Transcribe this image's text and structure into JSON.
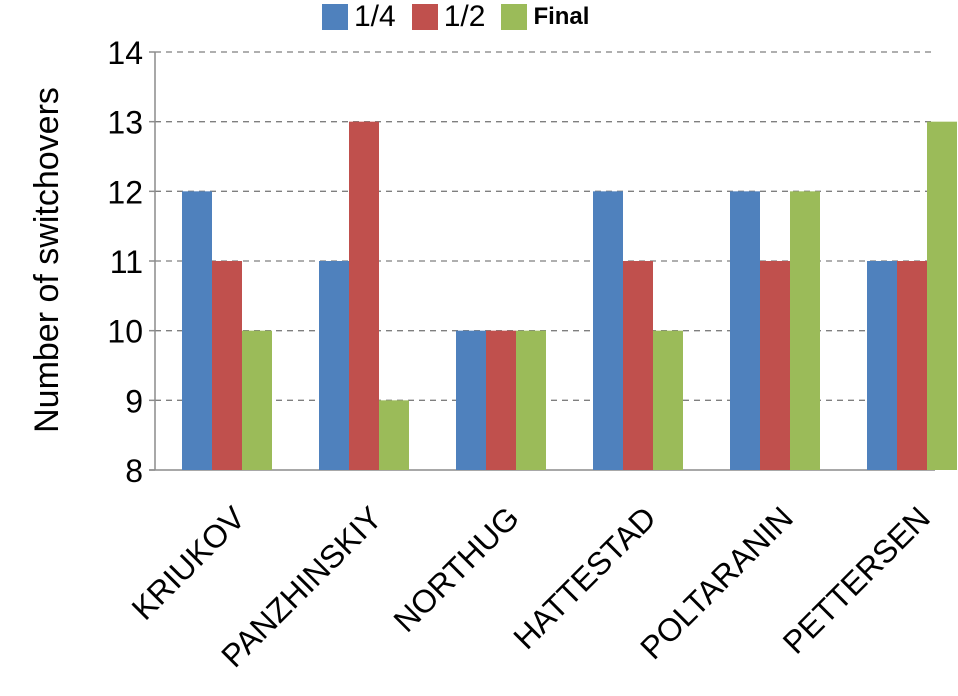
{
  "chart_data": {
    "type": "bar",
    "title": "",
    "xlabel": "",
    "ylabel": "Number of switchovers",
    "ylim": [
      8,
      14
    ],
    "yticks": [
      8,
      9,
      10,
      11,
      12,
      13,
      14
    ],
    "grid": true,
    "legend_position": "top-center",
    "categories": [
      "KRIUKOV",
      "PANZHINSKIY",
      "NORTHUG",
      "HATTESTAD",
      "POLTARANIN",
      "PETTERSEN"
    ],
    "series": [
      {
        "name": "1/4",
        "color": "#4f81bd",
        "values": [
          12,
          11,
          10,
          12,
          12,
          11
        ]
      },
      {
        "name": "1/2",
        "color": "#c0504d",
        "values": [
          11,
          13,
          10,
          11,
          11,
          11
        ]
      },
      {
        "name": "Final",
        "color": "#9bbb59",
        "values": [
          10,
          9,
          10,
          10,
          12,
          13
        ]
      }
    ]
  }
}
